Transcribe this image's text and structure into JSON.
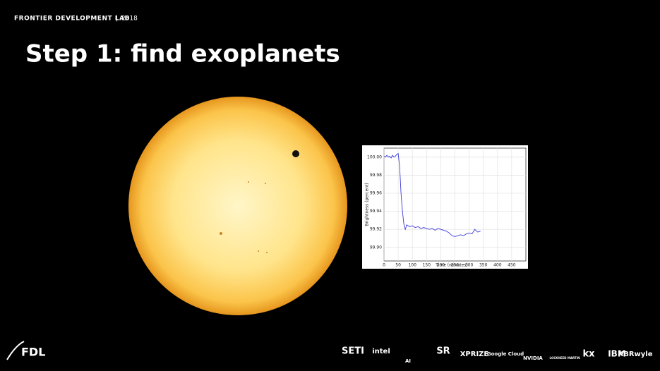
{
  "header": {
    "org": "FRONTIER DEVELOPMENT LAB",
    "year": "2018"
  },
  "title": "Step 1: find exoplanets",
  "chart": {
    "type": "line",
    "x_label": "Time (minutes)",
    "y_label": "Brightness (percent)",
    "color": "#3a3ad8",
    "x": [
      0,
      5,
      10,
      15,
      20,
      25,
      30,
      35,
      40,
      45,
      50,
      55,
      60,
      65,
      70,
      75,
      80,
      90,
      100,
      110,
      120,
      130,
      140,
      150,
      160,
      170,
      180,
      190,
      200,
      210,
      220,
      230,
      240,
      250,
      260,
      270,
      280,
      290,
      300,
      310,
      320,
      330,
      340
    ],
    "values": [
      100.001,
      100.0,
      100.002,
      100.0,
      100.001,
      99.999,
      100.002,
      100.0,
      100.001,
      100.003,
      100.004,
      99.99,
      99.96,
      99.94,
      99.926,
      99.92,
      99.925,
      99.923,
      99.924,
      99.922,
      99.923,
      99.921,
      99.922,
      99.921,
      99.92,
      99.921,
      99.919,
      99.921,
      99.92,
      99.919,
      99.918,
      99.916,
      99.913,
      99.912,
      99.913,
      99.914,
      99.913,
      99.915,
      99.916,
      99.915,
      99.92,
      99.917,
      99.918
    ],
    "xlim": [
      0,
      500
    ],
    "xticks": [
      0,
      50,
      100,
      150,
      200,
      250,
      300,
      350,
      400,
      450
    ],
    "ylim": [
      99.885,
      100.01
    ],
    "yticks": [
      {
        "value": 99.9,
        "label": "99.90"
      },
      {
        "value": 99.92,
        "label": "99.92"
      },
      {
        "value": 99.94,
        "label": "99.94"
      },
      {
        "value": 99.96,
        "label": "99.96"
      },
      {
        "value": 99.98,
        "label": "99.98"
      },
      {
        "value": 100.0,
        "label": "100.00"
      }
    ],
    "grid": true
  },
  "footer": {
    "brand": "FDL",
    "logos": [
      "SETI",
      "intel",
      "AI",
      "SR",
      "XPRIZE",
      "Google Cloud",
      "NVIDIA",
      "LOCKHEED MARTIN",
      "kx",
      "IBM",
      "KBRwyle"
    ]
  }
}
